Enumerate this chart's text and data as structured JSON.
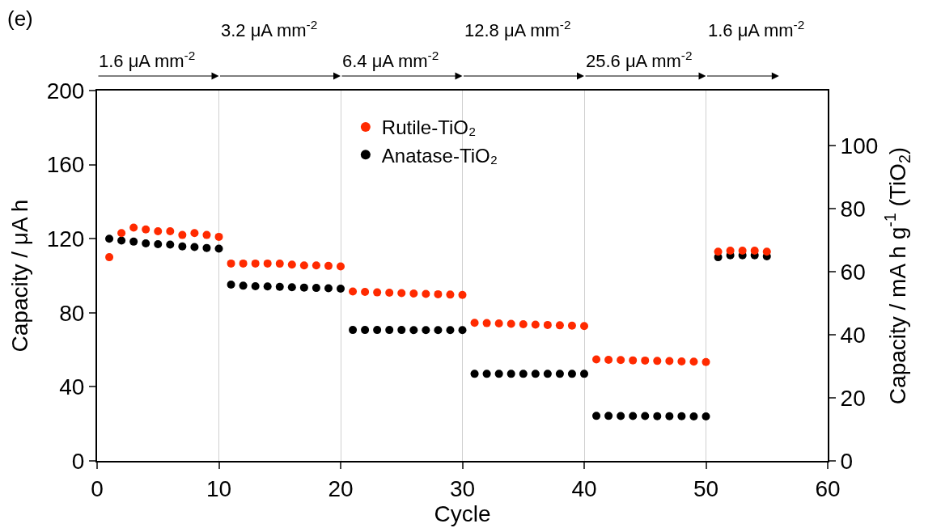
{
  "chart_data": {
    "type": "scatter",
    "x": [
      1,
      2,
      3,
      4,
      5,
      6,
      7,
      8,
      9,
      10,
      11,
      12,
      13,
      14,
      15,
      16,
      17,
      18,
      19,
      20,
      21,
      22,
      23,
      24,
      25,
      26,
      27,
      28,
      29,
      30,
      31,
      32,
      33,
      34,
      35,
      36,
      37,
      38,
      39,
      40,
      41,
      42,
      43,
      44,
      45,
      46,
      47,
      48,
      49,
      50,
      51,
      52,
      53,
      54,
      55
    ],
    "series": [
      {
        "name": "Rutile-TiO₂",
        "color": "#ff2a00",
        "values": [
          110,
          123,
          126,
          125,
          124,
          124,
          122,
          123,
          122,
          121,
          106.6,
          106.6,
          106.6,
          106.6,
          106.5,
          106,
          105.6,
          105.6,
          105.3,
          105,
          91.5,
          91.3,
          91,
          90.8,
          90.6,
          90.4,
          90.2,
          90,
          89.8,
          89.6,
          74.6,
          74.4,
          74.2,
          74,
          73.8,
          73.6,
          73.4,
          73.2,
          73,
          72.8,
          54.8,
          54.6,
          54.5,
          54.3,
          54.2,
          54,
          53.9,
          53.7,
          53.6,
          53.4,
          113,
          113.5,
          113.5,
          113.5,
          113
        ]
      },
      {
        "name": "Anatase-TiO₂",
        "color": "#000000",
        "values": [
          120,
          119,
          118.4,
          117.5,
          117,
          116.8,
          115.8,
          115.5,
          115,
          114.6,
          95.2,
          94.6,
          94.3,
          94.2,
          94,
          93.8,
          93.6,
          93.4,
          93.2,
          93,
          70.7,
          70.7,
          70.7,
          70.7,
          70.7,
          70.6,
          70.6,
          70.6,
          70.6,
          70.6,
          47,
          47,
          47,
          47,
          47,
          47,
          47,
          47,
          47,
          47,
          24.3,
          24.3,
          24.2,
          24.2,
          24.2,
          24.1,
          24.1,
          24.1,
          24,
          24,
          110,
          111,
          111,
          111,
          110.5
        ]
      }
    ],
    "xlabel": "Cycle",
    "ylabel": "Capacity / μA h",
    "y2label": "Capacity / mA h g$^{-1}$ (TiO$_{2}$)",
    "xlim": [
      0,
      60
    ],
    "xticks": [
      0,
      10,
      20,
      30,
      40,
      50,
      60
    ],
    "ylim": [
      0,
      200
    ],
    "yticks": [
      0,
      40,
      80,
      120,
      160,
      200
    ],
    "y2lim": [
      0,
      117.5
    ],
    "y2ticks": [
      0,
      20,
      40,
      60,
      80,
      100
    ],
    "grid": "x",
    "legend": "top",
    "marker": "circle",
    "annotations": [
      "(e)",
      "1.6 μA mm$^{-2}$",
      "3.2 μA mm$^{-2}$",
      "6.4 μA mm$^{-2}$",
      "12.8 μA mm$^{-2}$",
      "25.6 μA mm$^{-2}$",
      "1.6 μA mm$^{-2}$"
    ]
  }
}
